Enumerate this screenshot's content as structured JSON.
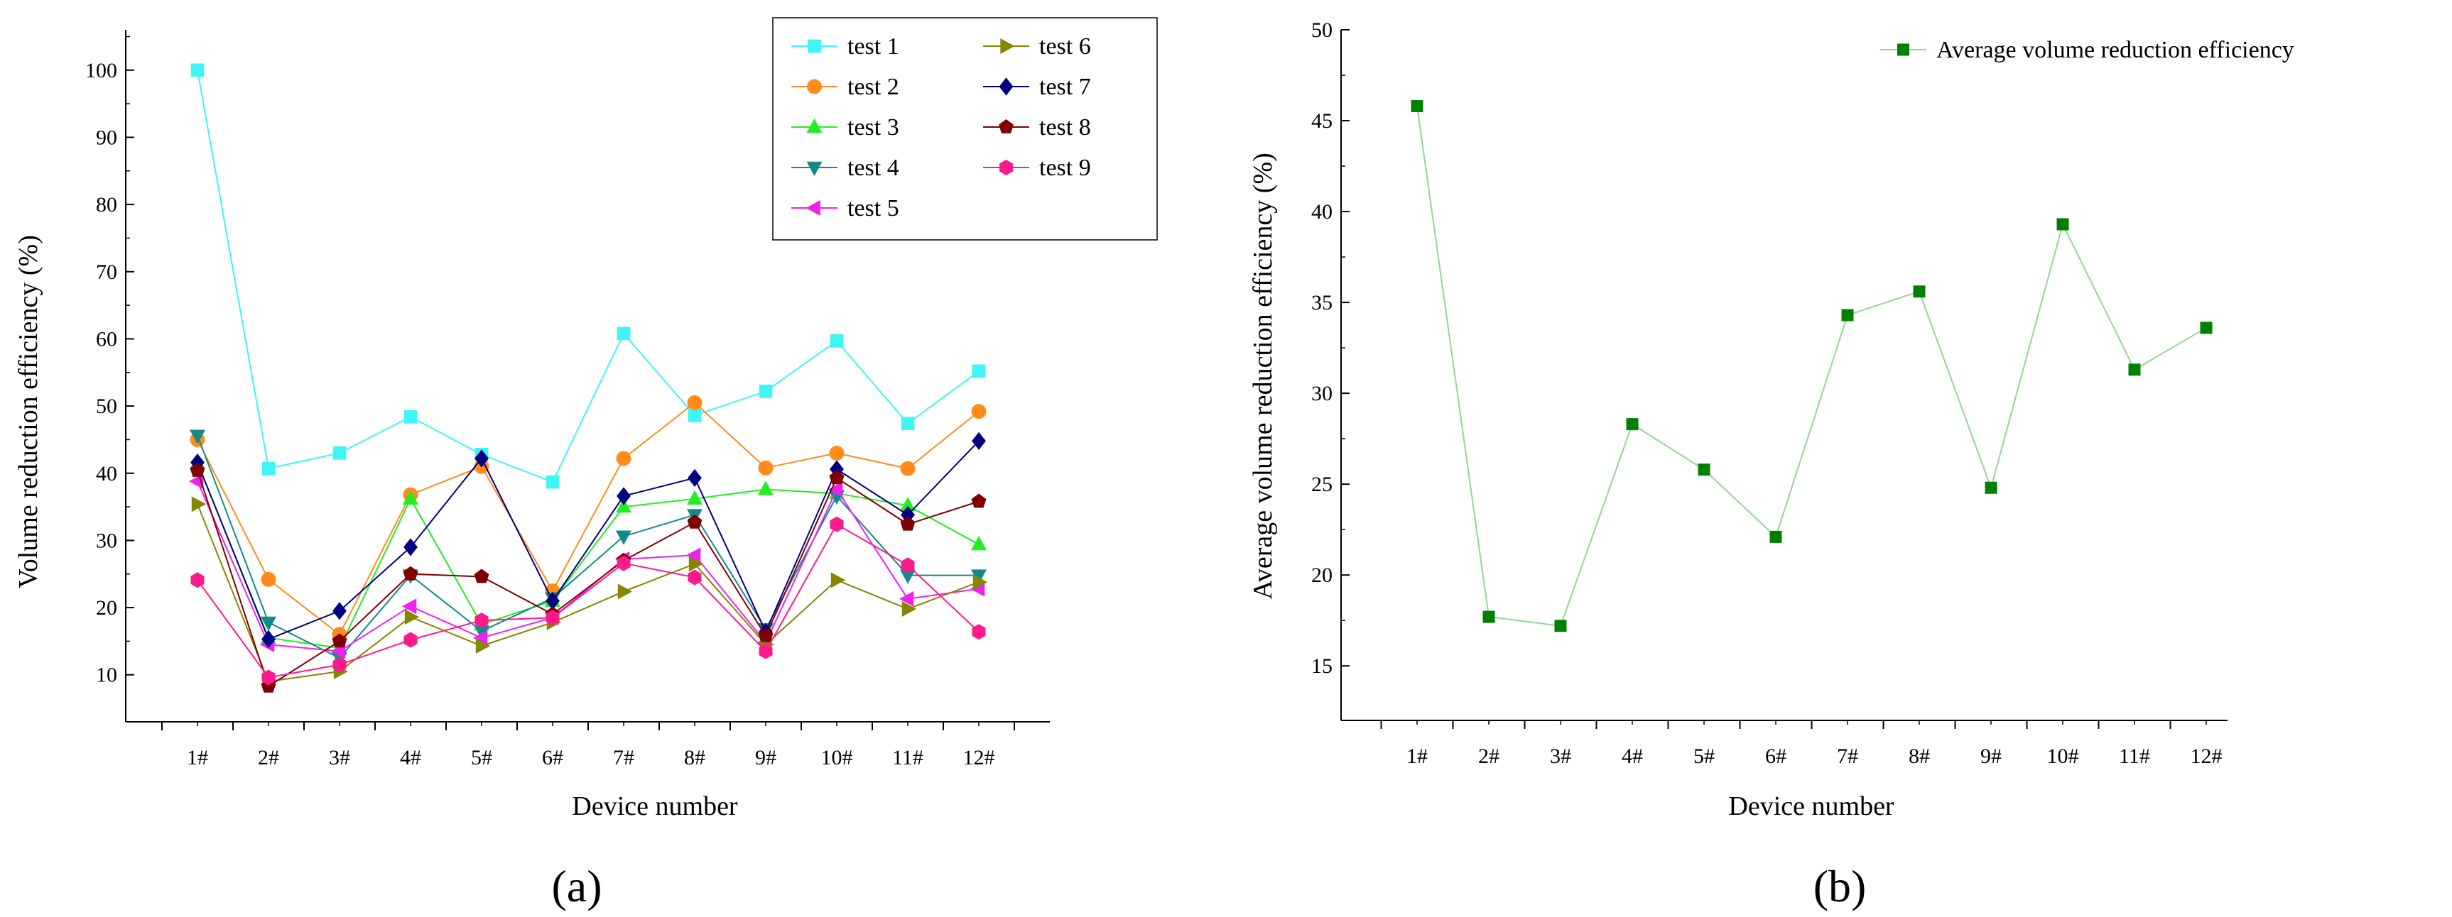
{
  "figure": {
    "panel_a_label": "(a)",
    "panel_b_label": "(b)"
  },
  "chart_data": [
    {
      "id": "a",
      "type": "line",
      "title": "",
      "xlabel": "Device number",
      "ylabel": "Volume reduction efficiency (%)",
      "categories": [
        "1#",
        "2#",
        "3#",
        "4#",
        "5#",
        "6#",
        "7#",
        "8#",
        "9#",
        "10#",
        "11#",
        "12#"
      ],
      "yticks": [
        10,
        20,
        30,
        40,
        50,
        60,
        70,
        80,
        90,
        100
      ],
      "ylim": [
        3,
        106
      ],
      "legend_position": "top-right",
      "series": [
        {
          "name": "test 1",
          "marker": "square",
          "color": "#3ff5f5",
          "values": [
            100,
            40.7,
            43.0,
            48.4,
            42.8,
            38.7,
            60.8,
            48.6,
            52.2,
            59.7,
            47.4,
            55.2
          ]
        },
        {
          "name": "test 2",
          "marker": "circle",
          "color": "#ff8c1a",
          "values": [
            45.0,
            24.2,
            16.0,
            36.8,
            41.0,
            22.5,
            42.2,
            50.5,
            40.8,
            43.0,
            40.7,
            49.2
          ]
        },
        {
          "name": "test 3",
          "marker": "triangle-up",
          "color": "#22ee22",
          "values": [
            41.5,
            15.5,
            14.0,
            36.2,
            17.5,
            21.0,
            35.0,
            36.2,
            37.6,
            37.0,
            35.2,
            29.4
          ]
        },
        {
          "name": "test 4",
          "marker": "triangle-down",
          "color": "#138a8a",
          "values": [
            45.6,
            17.8,
            12.5,
            24.8,
            16.5,
            21.4,
            30.6,
            33.8,
            16.8,
            36.6,
            24.8,
            24.8
          ]
        },
        {
          "name": "test 5",
          "marker": "triangle-left",
          "color": "#ee22ee",
          "values": [
            38.8,
            14.5,
            13.5,
            20.2,
            15.5,
            18.5,
            27.2,
            27.8,
            14.8,
            37.6,
            21.3,
            22.8
          ]
        },
        {
          "name": "test 6",
          "marker": "triangle-right",
          "color": "#858500",
          "values": [
            35.4,
            9.0,
            10.5,
            18.6,
            14.3,
            17.8,
            22.4,
            26.5,
            14.5,
            24.1,
            19.8,
            23.8
          ]
        },
        {
          "name": "test 7",
          "marker": "diamond",
          "color": "#000080",
          "values": [
            41.6,
            15.3,
            19.5,
            29.0,
            42.2,
            21.0,
            36.6,
            39.3,
            16.4,
            40.6,
            33.8,
            44.8
          ]
        },
        {
          "name": "test 8",
          "marker": "pentagon",
          "color": "#800000",
          "values": [
            40.4,
            8.3,
            15.0,
            25.0,
            24.6,
            19.0,
            27.0,
            32.7,
            15.8,
            39.3,
            32.4,
            35.8
          ]
        },
        {
          "name": "test 9",
          "marker": "hexagon",
          "color": "#ff1a8c",
          "values": [
            24.1,
            9.6,
            11.5,
            15.2,
            18.1,
            18.5,
            26.6,
            24.5,
            13.5,
            32.4,
            26.3,
            16.4
          ]
        }
      ]
    },
    {
      "id": "b",
      "type": "line",
      "title": "",
      "xlabel": "Device number",
      "ylabel": "Average volume reduction efficiency (%)",
      "categories": [
        "1#",
        "2#",
        "3#",
        "4#",
        "5#",
        "6#",
        "7#",
        "8#",
        "9#",
        "10#",
        "11#",
        "12#"
      ],
      "yticks": [
        15,
        20,
        25,
        30,
        35,
        40,
        45,
        50
      ],
      "ylim": [
        12,
        50
      ],
      "legend_position": "top-right",
      "series": [
        {
          "name": "Average volume reduction efficiency",
          "marker": "square",
          "color": "#008000",
          "line_color": "#90d890",
          "values": [
            45.8,
            17.7,
            17.2,
            28.3,
            25.8,
            22.1,
            34.3,
            35.6,
            24.8,
            39.3,
            31.3,
            33.6
          ]
        }
      ]
    }
  ]
}
